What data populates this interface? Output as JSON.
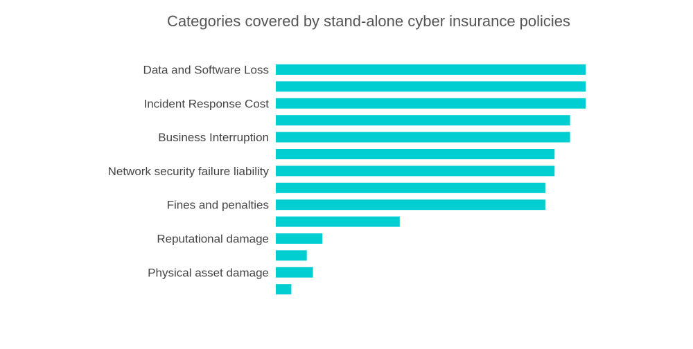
{
  "chart_data": {
    "type": "bar",
    "orientation": "horizontal",
    "title": "Categories covered by stand-alone cyber insurance policies",
    "xlabel": "",
    "ylabel": "",
    "categories": [
      "Data and Software Loss",
      "",
      "Incident Response Cost",
      "",
      "Business Interruption",
      "",
      "Network security failure liability",
      "",
      "Fines and penalties",
      "",
      "Reputational damage",
      "",
      "Physical asset damage",
      ""
    ],
    "values": [
      100,
      100,
      100,
      95,
      95,
      90,
      90,
      87,
      87,
      40,
      15,
      10,
      12,
      5
    ],
    "xlim": [
      0,
      100
    ],
    "grid": false,
    "legend": "none",
    "colors": {
      "bar": "#00CED1",
      "text": "#444444",
      "title": "#555555"
    }
  }
}
